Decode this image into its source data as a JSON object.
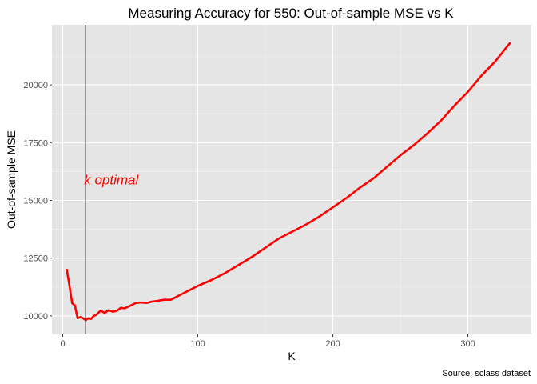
{
  "chart_data": {
    "type": "line",
    "title": "Measuring Accuracy for 550: Out-of-sample MSE vs K",
    "xlabel": "K",
    "ylabel": "Out-of-sample MSE",
    "caption": "Source: sclass dataset",
    "xlim": [
      -8,
      347
    ],
    "ylim": [
      9200,
      22600
    ],
    "x_ticks": [
      0,
      100,
      200,
      300
    ],
    "x_tick_labels": [
      "0",
      "100",
      "200",
      "300"
    ],
    "y_ticks": [
      10000,
      12500,
      15000,
      17500,
      20000
    ],
    "y_tick_labels": [
      "10000",
      "12500",
      "15000",
      "17500",
      "20000"
    ],
    "grid": true,
    "series": [
      {
        "color": "#ff0000",
        "x": [
          3,
          5,
          7,
          9,
          11,
          13,
          15,
          17,
          19,
          21,
          23,
          25,
          28,
          31,
          34,
          37,
          40,
          43,
          46,
          50,
          54,
          58,
          62,
          66,
          70,
          75,
          80,
          85,
          90,
          95,
          100,
          110,
          120,
          130,
          140,
          150,
          160,
          170,
          180,
          190,
          200,
          210,
          220,
          230,
          240,
          250,
          260,
          270,
          280,
          290,
          300,
          310,
          320,
          331
        ],
        "y": [
          12000,
          11300,
          10550,
          10450,
          9900,
          9950,
          9900,
          9820,
          9900,
          9870,
          10000,
          10050,
          10230,
          10130,
          10250,
          10180,
          10220,
          10350,
          10330,
          10440,
          10560,
          10580,
          10560,
          10620,
          10650,
          10700,
          10700,
          10850,
          11000,
          11150,
          11300,
          11550,
          11850,
          12200,
          12550,
          12950,
          13350,
          13650,
          13950,
          14300,
          14700,
          15100,
          15550,
          15950,
          16450,
          16950,
          17400,
          17900,
          18450,
          19100,
          19700,
          20400,
          21000,
          21800
        ]
      }
    ],
    "vline": {
      "x": 17,
      "color": "#000000"
    },
    "annotation": {
      "text": "k optimal",
      "x": 17,
      "y": 15900,
      "color": "#ff0000"
    }
  }
}
